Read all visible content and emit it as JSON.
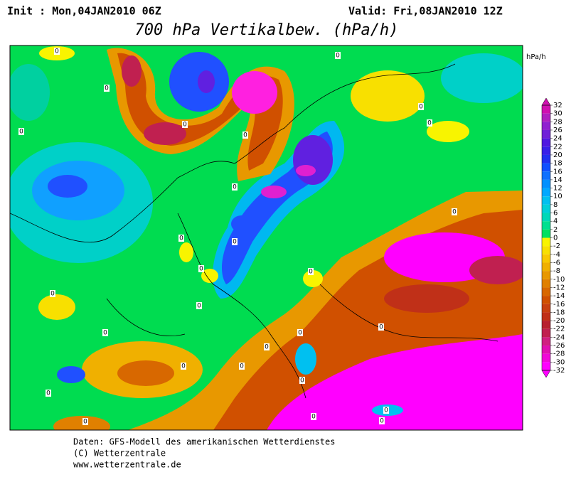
{
  "header": {
    "init": "Init : Mon,04JAN2010 06Z",
    "valid": "Valid: Fri,08JAN2010 12Z",
    "title": "700 hPa Vertikalbew. (hPa/h)"
  },
  "legend": {
    "unit": "hPa/h",
    "ticks": [
      32,
      30,
      28,
      26,
      24,
      22,
      20,
      18,
      16,
      14,
      12,
      10,
      8,
      6,
      4,
      2,
      0,
      -2,
      -4,
      -6,
      -8,
      -10,
      -12,
      -14,
      -16,
      -18,
      -20,
      -22,
      -24,
      -26,
      -28,
      -30,
      -32
    ],
    "colors": [
      "#d010b0",
      "#b020c0",
      "#9020d0",
      "#7020d8",
      "#5018e0",
      "#3820e8",
      "#2030f0",
      "#1050ff",
      "#1070ff",
      "#0090ff",
      "#00a8ff",
      "#00c0f0",
      "#00d0d8",
      "#00d8b8",
      "#00e090",
      "#00e060",
      "#f8f400",
      "#f8e000",
      "#f8c800",
      "#f0b000",
      "#e89800",
      "#e08000",
      "#d86800",
      "#d05000",
      "#c84010",
      "#c03018",
      "#b82030",
      "#c02050",
      "#d02080",
      "#e010b0",
      "#f008d8",
      "#ff00ff"
    ]
  },
  "map": {
    "zero_labels": [
      "0",
      "0",
      "0",
      "0",
      "0",
      "0",
      "0",
      "0",
      "0",
      "0",
      "0",
      "0",
      "0",
      "0",
      "0",
      "0",
      "0",
      "0",
      "0",
      "0",
      "0",
      "0",
      "0",
      "0",
      "0",
      "0",
      "0",
      "0"
    ]
  },
  "footer": {
    "lines": [
      "Daten: GFS-Modell des amerikanischen Wetterdienstes",
      "(C) Wetterzentrale",
      "www.wetterzentrale.de"
    ]
  }
}
